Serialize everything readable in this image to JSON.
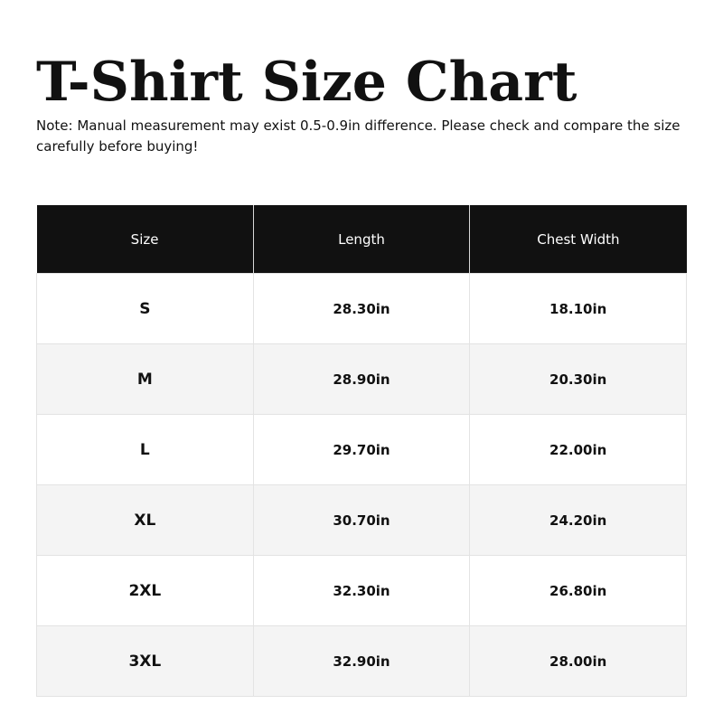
{
  "title": "T-Shirt Size Chart",
  "note": "Note: Manual measurement may exist 0.5-0.9in difference. Please check and compare the size carefully before buying!",
  "table": {
    "headers": [
      "Size",
      "Length",
      "Chest Width"
    ],
    "rows": [
      [
        "S",
        "28.30in",
        "18.10in"
      ],
      [
        "M",
        "28.90in",
        "20.30in"
      ],
      [
        "L",
        "29.70in",
        "22.00in"
      ],
      [
        "XL",
        "30.70in",
        "24.20in"
      ],
      [
        "2XL",
        "32.30in",
        "26.80in"
      ],
      [
        "3XL",
        "32.90in",
        "28.00in"
      ]
    ]
  },
  "colors": {
    "header_bg": "#111111",
    "alt_row_bg": "#f4f4f4"
  }
}
